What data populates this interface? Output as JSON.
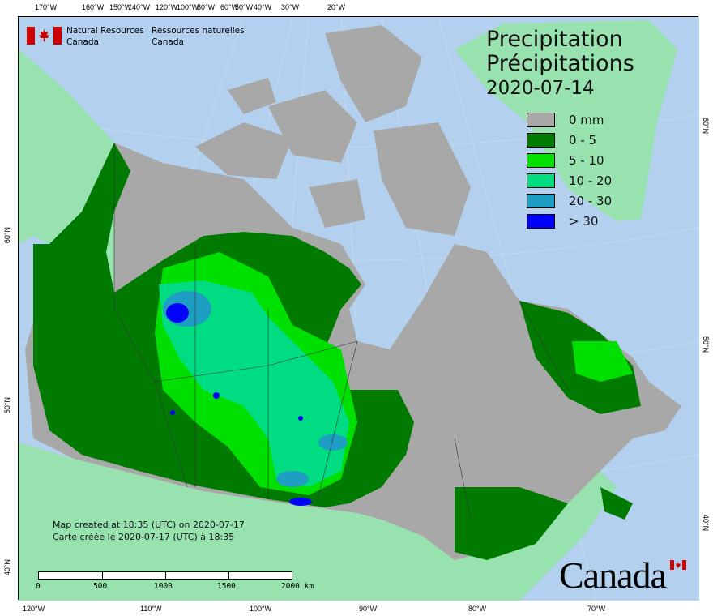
{
  "header": {
    "org_en": [
      "Natural Resources",
      "Canada"
    ],
    "org_fr": [
      "Ressources naturelles",
      "Canada"
    ],
    "flag_icon": "canada-flag"
  },
  "title": {
    "en": "Precipitation",
    "fr": "Précipitations",
    "date": "2020-07-14"
  },
  "legend": [
    {
      "label": "0 mm",
      "color": "#a8a8a8"
    },
    {
      "label": "0 - 5",
      "color": "#007a00"
    },
    {
      "label": "5 - 10",
      "color": "#00e000"
    },
    {
      "label": "10 - 20",
      "color": "#00dc82"
    },
    {
      "label": "20 - 30",
      "color": "#1e9ec3"
    },
    {
      "label": "> 30",
      "color": "#0000ff"
    }
  ],
  "top_ticks": [
    "170°W",
    "160°W",
    "150°W",
    "140°W",
    "120°W",
    "100°W",
    "80°W",
    "60°W",
    "50°W",
    "40°W",
    "30°W",
    "20°W"
  ],
  "bottom_ticks": [
    "120°W",
    "110°W",
    "100°W",
    "90°W",
    "80°W",
    "70°W"
  ],
  "left_ticks": [
    "60°N",
    "50°N",
    "40°N"
  ],
  "right_ticks": [
    "60°N",
    "50°N",
    "40°N"
  ],
  "created": {
    "en": "Map created at 18:35 (UTC) on 2020-07-17",
    "fr": "Carte créée le 2020-07-17 (UTC) à 18:35"
  },
  "scale": {
    "labels": [
      "0",
      "500",
      "1000",
      "1500",
      "2000 km"
    ]
  },
  "wordmark": "Canada",
  "colors": {
    "water": "#b3d1ef",
    "foreign_land": "#98e2b0",
    "no_precip": "#a8a8a8"
  }
}
